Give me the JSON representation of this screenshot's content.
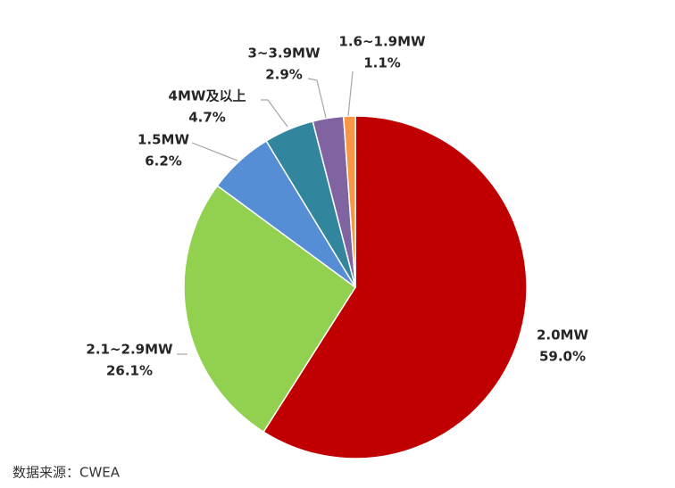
{
  "chart_data": {
    "type": "pie",
    "categories": [
      "2.0MW",
      "2.1~2.9MW",
      "1.5MW",
      "4MW及以上",
      "3~3.9MW",
      "1.6~1.9MW"
    ],
    "values": [
      59.0,
      26.1,
      6.2,
      4.7,
      2.9,
      1.1
    ],
    "value_labels": [
      "59.0%",
      "26.1%",
      "6.2%",
      "4.7%",
      "2.9%",
      "1.1%"
    ],
    "colors": [
      "#c00000",
      "#92d050",
      "#558ed5",
      "#31859c",
      "#8064a2",
      "#f79646"
    ],
    "source": "数据来源：CWEA"
  }
}
